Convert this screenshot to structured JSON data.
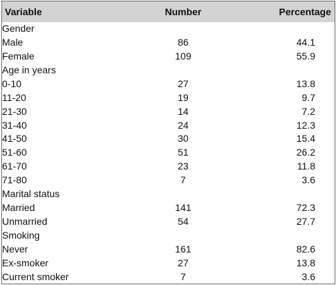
{
  "table": {
    "headers": [
      "Variable",
      "Number",
      "Percentage"
    ],
    "rows": [
      {
        "kind": "category",
        "label": "Gender",
        "number": "",
        "percentage": ""
      },
      {
        "kind": "item",
        "label": "Male",
        "number": "86",
        "percentage": "44.1"
      },
      {
        "kind": "item",
        "label": "Female",
        "number": "109",
        "percentage": "55.9"
      },
      {
        "kind": "category",
        "label": "Age in years",
        "number": "",
        "percentage": ""
      },
      {
        "kind": "item",
        "label": "0-10",
        "number": "27",
        "percentage": "13.8"
      },
      {
        "kind": "item",
        "label": "11-20",
        "number": "19",
        "percentage": "9.7"
      },
      {
        "kind": "item",
        "label": "21-30",
        "number": "14",
        "percentage": "7.2"
      },
      {
        "kind": "item",
        "label": "31-40",
        "number": "24",
        "percentage": "12.3"
      },
      {
        "kind": "item",
        "label": "41-50",
        "number": "30",
        "percentage": "15.4"
      },
      {
        "kind": "item",
        "label": "51-60",
        "number": "51",
        "percentage": "26.2"
      },
      {
        "kind": "item",
        "label": "61-70",
        "number": "23",
        "percentage": "11.8"
      },
      {
        "kind": "item",
        "label": "71-80",
        "number": "7",
        "percentage": "3.6"
      },
      {
        "kind": "category",
        "label": "Marital status",
        "number": "",
        "percentage": ""
      },
      {
        "kind": "item",
        "label": "Married",
        "number": "141",
        "percentage": "72.3"
      },
      {
        "kind": "item",
        "label": "Unmarried",
        "number": "54",
        "percentage": "27.7"
      },
      {
        "kind": "category",
        "label": "Smoking",
        "number": "",
        "percentage": ""
      },
      {
        "kind": "item",
        "label": "Never",
        "number": "161",
        "percentage": "82.6"
      },
      {
        "kind": "item",
        "label": "Ex-smoker",
        "number": "27",
        "percentage": "13.8"
      },
      {
        "kind": "item",
        "label": "Current smoker",
        "number": "7",
        "percentage": "3.6"
      }
    ]
  },
  "colors": {
    "header_bg": "#d3d3d3",
    "border": "#6b6b6b",
    "text": "#111111"
  }
}
